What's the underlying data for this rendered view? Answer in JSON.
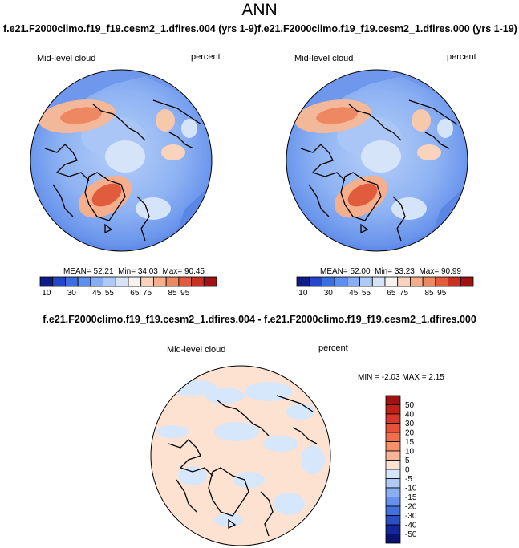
{
  "header": {
    "title": "ANN",
    "left_case": "f.e21.F2000climo.f19_f19.cesm2_1.dfires.004 (yrs 1-9)",
    "right_case": "f.e21.F2000climo.f19_f19.cesm2_1.dfires.000 (yrs 1-19)",
    "diff_title": "f.e21.F2000climo.f19_f19.cesm2_1.dfires.004 - f.e21.F2000climo.f19_f19.cesm2_1.dfires.000"
  },
  "chart_data": [
    {
      "type": "heatmap",
      "projection": "polar-stereographic (north pole)",
      "variable": "Mid-level cloud",
      "units": "percent",
      "stats": {
        "mean_label": "MEAN=",
        "mean": "52.21",
        "min_label": "Min=",
        "min": "34.03",
        "max_label": "Max=",
        "max": "90.45"
      },
      "colorbar": {
        "orientation": "horizontal",
        "tick_labels": [
          "10",
          "30",
          "45",
          "55",
          "65",
          "75",
          "85",
          "95"
        ],
        "colors": [
          "#0c1d8a",
          "#2446c8",
          "#3d6ee0",
          "#5e8ef0",
          "#86adf6",
          "#aecbf8",
          "#d6e4fa",
          "#f8f3ee",
          "#fad3bd",
          "#f6af8c",
          "#ee8862",
          "#e05c3c",
          "#c93124",
          "#9e1313"
        ]
      }
    },
    {
      "type": "heatmap",
      "projection": "polar-stereographic (north pole)",
      "variable": "Mid-level cloud",
      "units": "percent",
      "stats": {
        "mean_label": "MEAN=",
        "mean": "52.00",
        "min_label": "Min=",
        "min": "33.23",
        "max_label": "Max=",
        "max": "90.99"
      },
      "colorbar": {
        "orientation": "horizontal",
        "tick_labels": [
          "10",
          "30",
          "45",
          "55",
          "65",
          "75",
          "85",
          "95"
        ],
        "colors": [
          "#0c1d8a",
          "#2446c8",
          "#3d6ee0",
          "#5e8ef0",
          "#86adf6",
          "#aecbf8",
          "#d6e4fa",
          "#f8f3ee",
          "#fad3bd",
          "#f6af8c",
          "#ee8862",
          "#e05c3c",
          "#c93124",
          "#9e1313"
        ]
      }
    },
    {
      "type": "heatmap",
      "projection": "polar-stereographic (north pole)",
      "variable": "Mid-level cloud",
      "units": "percent",
      "stats": {
        "min_label": "MIN =",
        "min": "-2.03",
        "max_label": "MAX =",
        "max": "2.15"
      },
      "colorbar": {
        "orientation": "vertical",
        "tick_labels": [
          "50",
          "40",
          "30",
          "20",
          "15",
          "10",
          "5",
          "0",
          "-5",
          "-10",
          "-15",
          "-20",
          "-30",
          "-40",
          "-50"
        ],
        "colors": [
          "#9e1313",
          "#c02018",
          "#d8362a",
          "#e85038",
          "#f06e4c",
          "#f58f6c",
          "#f8b496",
          "#fde2d2",
          "#d6e6fb",
          "#b0ccf6",
          "#8aaef2",
          "#6690ec",
          "#4270de",
          "#2a4fc4",
          "#13279a",
          "#0a1470"
        ]
      }
    }
  ]
}
